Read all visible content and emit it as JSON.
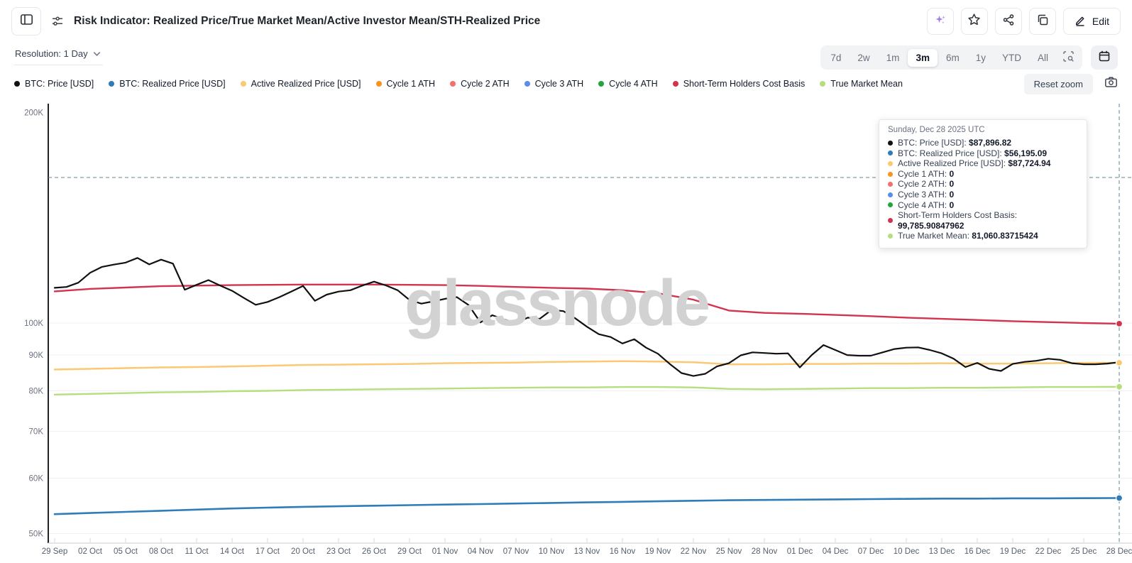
{
  "header": {
    "title": "Risk Indicator: Realized Price/True Market Mean/Active Investor Mean/STH-Realized Price",
    "edit_label": "Edit"
  },
  "toolbar": {
    "resolution_label": "Resolution: 1 Day",
    "ranges": [
      "7d",
      "2w",
      "1m",
      "3m",
      "6m",
      "1y",
      "YTD",
      "All"
    ],
    "active_range": "3m",
    "reset_zoom_label": "Reset zoom"
  },
  "legend": {
    "items": [
      {
        "label": "BTC: Price [USD]",
        "color": "#111111"
      },
      {
        "label": "BTC: Realized Price [USD]",
        "color": "#2e7cb8"
      },
      {
        "label": "Active Realized Price [USD]",
        "color": "#fbc874"
      },
      {
        "label": "Cycle 1 ATH",
        "color": "#f7941d"
      },
      {
        "label": "Cycle 2 ATH",
        "color": "#f2706d"
      },
      {
        "label": "Cycle 3 ATH",
        "color": "#5a8ceb"
      },
      {
        "label": "Cycle 4 ATH",
        "color": "#23a43f"
      },
      {
        "label": "Short-Term Holders Cost Basis",
        "color": "#d23450"
      },
      {
        "label": "True Market Mean",
        "color": "#b5df7c"
      }
    ]
  },
  "tooltip": {
    "title": "Sunday, Dec 28 2025 UTC",
    "rows": [
      {
        "label": "BTC: Price [USD]",
        "value": "$87,896.82",
        "color": "#111111"
      },
      {
        "label": "BTC: Realized Price [USD]",
        "value": "$56,195.09",
        "color": "#2e7cb8"
      },
      {
        "label": "Active Realized Price [USD]",
        "value": "$87,724.94",
        "color": "#fbc874"
      },
      {
        "label": "Cycle 1 ATH",
        "value": "0",
        "color": "#f7941d"
      },
      {
        "label": "Cycle 2 ATH",
        "value": "0",
        "color": "#f2706d"
      },
      {
        "label": "Cycle 3 ATH",
        "value": "0",
        "color": "#5a8ceb"
      },
      {
        "label": "Cycle 4 ATH",
        "value": "0",
        "color": "#23a43f"
      },
      {
        "label": "Short-Term Holders Cost Basis",
        "value": "99,785.90847962",
        "color": "#d23450"
      },
      {
        "label": "True Market Mean",
        "value": "81,060.83715424",
        "color": "#b5df7c"
      }
    ]
  },
  "chart_data": {
    "type": "line",
    "watermark": "glassnode",
    "x_ticks": [
      "29 Sep",
      "02 Oct",
      "05 Oct",
      "08 Oct",
      "11 Oct",
      "14 Oct",
      "17 Oct",
      "20 Oct",
      "23 Oct",
      "26 Oct",
      "29 Oct",
      "01 Nov",
      "04 Nov",
      "07 Nov",
      "10 Nov",
      "13 Nov",
      "16 Nov",
      "19 Nov",
      "22 Nov",
      "25 Nov",
      "28 Nov",
      "01 Dec",
      "04 Dec",
      "07 Dec",
      "10 Dec",
      "13 Dec",
      "16 Dec",
      "19 Dec",
      "22 Dec",
      "25 Dec",
      "28 Dec"
    ],
    "y_axis": {
      "scale": "log",
      "unit": "USD (thousands)",
      "ticks": [
        {
          "label": "200K",
          "v": 200,
          "grid": false
        },
        {
          "label": "100K",
          "v": 100,
          "grid": true
        },
        {
          "label": "90K",
          "v": 90,
          "grid": true
        },
        {
          "label": "80K",
          "v": 80,
          "grid": true
        },
        {
          "label": "70K",
          "v": 70,
          "grid": true
        },
        {
          "label": "60K",
          "v": 60,
          "grid": true
        },
        {
          "label": "50K",
          "v": 50,
          "grid": true
        }
      ]
    },
    "series": [
      {
        "name": "BTC: Realized Price [USD]",
        "color": "#2e7cb8",
        "width": 2.6,
        "step": 3,
        "plotted": true,
        "values": [
          53.3,
          53.5,
          53.7,
          53.9,
          54.1,
          54.3,
          54.45,
          54.6,
          54.7,
          54.8,
          54.9,
          55.0,
          55.1,
          55.2,
          55.3,
          55.4,
          55.5,
          55.6,
          55.7,
          55.8,
          55.85,
          55.9,
          55.95,
          56.0,
          56.05,
          56.1,
          56.1,
          56.15,
          56.15,
          56.18,
          56.195
        ]
      },
      {
        "name": "True Market Mean",
        "color": "#b5df7c",
        "width": 2.4,
        "step": 3,
        "plotted": true,
        "values": [
          79.0,
          79.2,
          79.4,
          79.6,
          79.7,
          79.9,
          80.0,
          80.2,
          80.3,
          80.4,
          80.5,
          80.6,
          80.7,
          80.8,
          80.9,
          80.9,
          81.0,
          81.0,
          80.9,
          80.5,
          80.4,
          80.5,
          80.6,
          80.7,
          80.7,
          80.8,
          80.8,
          80.9,
          81.0,
          81.0,
          81.061
        ]
      },
      {
        "name": "Active Realized Price [USD]",
        "color": "#fbc874",
        "width": 2.5,
        "step": 3,
        "plotted": true,
        "values": [
          85.8,
          86.0,
          86.2,
          86.4,
          86.5,
          86.7,
          86.9,
          87.1,
          87.2,
          87.3,
          87.4,
          87.6,
          87.7,
          87.8,
          88.0,
          88.1,
          88.2,
          88.1,
          87.9,
          87.3,
          87.3,
          87.4,
          87.4,
          87.5,
          87.5,
          87.6,
          87.5,
          87.5,
          87.6,
          87.7,
          87.725
        ]
      },
      {
        "name": "Short-Term Holders Cost Basis",
        "color": "#d23450",
        "width": 2.4,
        "step": 3,
        "plotted": true,
        "values": [
          111.0,
          111.9,
          112.4,
          112.9,
          113.1,
          113.3,
          113.4,
          113.5,
          113.5,
          113.5,
          113.4,
          113.3,
          113.0,
          112.6,
          112.3,
          112.0,
          111.4,
          110.3,
          108.0,
          104.2,
          103.4,
          103.1,
          102.7,
          102.3,
          101.8,
          101.4,
          101.0,
          100.6,
          100.3,
          100.0,
          99.786
        ]
      },
      {
        "name": "BTC: Price [USD]",
        "color": "#111111",
        "width": 2.2,
        "step": 1,
        "plotted": true,
        "values": [
          112.3,
          112.6,
          114.2,
          118.0,
          120.3,
          121.2,
          122.0,
          123.9,
          121.3,
          123.2,
          121.6,
          111.6,
          113.4,
          115.2,
          113.1,
          111.2,
          108.6,
          106.2,
          107.2,
          108.9,
          110.9,
          113.0,
          107.6,
          109.8,
          110.9,
          111.4,
          113.1,
          114.6,
          113.2,
          111.4,
          107.9,
          106.6,
          107.4,
          108.3,
          108.9,
          106.1,
          100.2,
          102.6,
          101.2,
          100.0,
          101.8,
          101.4,
          104.4,
          104.0,
          101.6,
          98.8,
          96.4,
          95.5,
          93.5,
          94.8,
          92.2,
          90.4,
          87.4,
          84.8,
          84.0,
          84.6,
          86.7,
          87.6,
          89.9,
          90.8,
          90.6,
          90.4,
          90.5,
          86.4,
          90.0,
          93.0,
          91.5,
          90.0,
          89.8,
          89.8,
          90.8,
          91.8,
          92.2,
          92.3,
          91.5,
          90.5,
          88.9,
          86.5,
          87.7,
          86.0,
          85.4,
          87.4,
          88.0,
          88.3,
          88.9,
          88.6,
          87.6,
          87.3,
          87.3,
          87.5,
          87.897
        ]
      },
      {
        "name": "Cycle 1 ATH",
        "color": "#f7941d",
        "width": 2,
        "step": 3,
        "plotted": false,
        "values": [
          0
        ]
      },
      {
        "name": "Cycle 2 ATH",
        "color": "#f2706d",
        "width": 2,
        "step": 3,
        "plotted": false,
        "values": [
          0
        ]
      },
      {
        "name": "Cycle 3 ATH",
        "color": "#5a8ceb",
        "width": 2,
        "step": 3,
        "plotted": false,
        "values": [
          0
        ]
      },
      {
        "name": "Cycle 4 ATH",
        "color": "#23a43f",
        "width": 2,
        "step": 3,
        "plotted": false,
        "values": [
          0
        ]
      }
    ],
    "end_dots": [
      {
        "color": "#111111",
        "v": 87.897
      },
      {
        "color": "#d23450",
        "v": 99.786
      },
      {
        "color": "#b5df7c",
        "v": 81.061
      },
      {
        "color": "#2e7cb8",
        "v": 56.195
      },
      {
        "color": "#fbc874",
        "v": 87.725
      }
    ],
    "crosshair": {
      "color": "#5d8496",
      "x_date": "28 Dec",
      "y_value": 159
    }
  }
}
